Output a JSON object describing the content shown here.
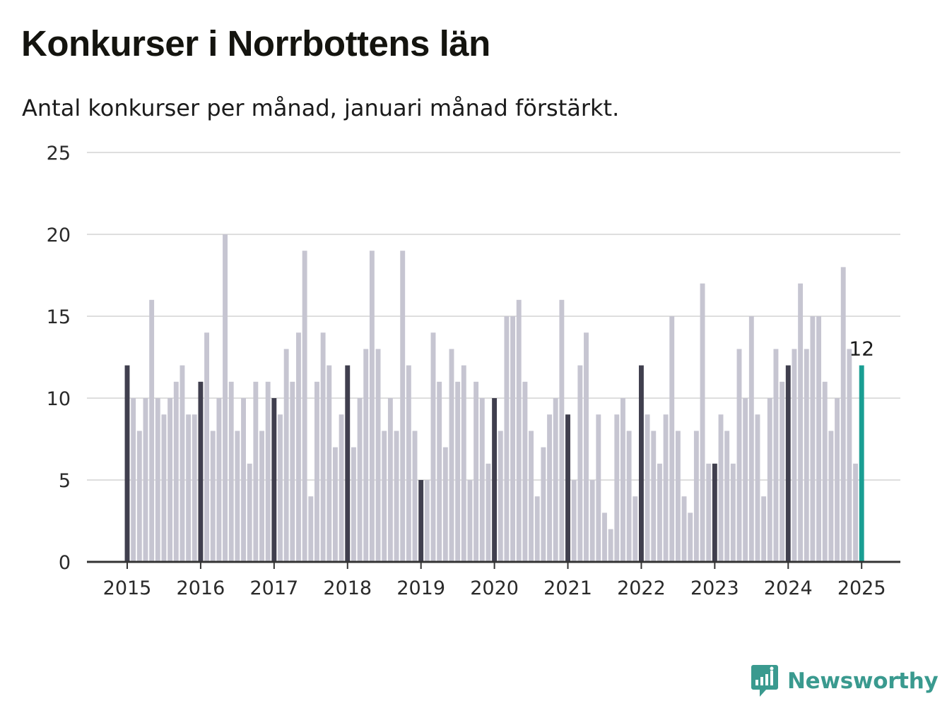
{
  "header": {
    "title": "Konkurser i Norrbottens län",
    "subtitle": "Antal konkurser per månad, januari månad förstärkt."
  },
  "brand": {
    "name": "Newsworthy",
    "icon": "newsworthy-logo-icon",
    "color": "#3a9a8f"
  },
  "colors": {
    "bar": "#c6c5d1",
    "january": "#403f4e",
    "latest": "#1a9e93",
    "grid": "#dedede",
    "axis": "#333333"
  },
  "chart_data": {
    "type": "bar",
    "title": "Konkurser i Norrbottens län",
    "subtitle": "Antal konkurser per månad, januari månad förstärkt.",
    "xlabel": "",
    "ylabel": "",
    "ylim": [
      0,
      25
    ],
    "yticks": [
      0,
      5,
      10,
      15,
      20,
      25
    ],
    "xticks": [
      "2015",
      "2016",
      "2017",
      "2018",
      "2019",
      "2020",
      "2021",
      "2022",
      "2023",
      "2024",
      "2025"
    ],
    "grid": true,
    "highlight": "january",
    "last_value_label": "12",
    "series": [
      {
        "year": "2015",
        "values": [
          12,
          10,
          8,
          10,
          16,
          10,
          9,
          10,
          11,
          12,
          9,
          9
        ]
      },
      {
        "year": "2016",
        "values": [
          11,
          14,
          8,
          10,
          20,
          11,
          8,
          10,
          6,
          11,
          8,
          11
        ]
      },
      {
        "year": "2017",
        "values": [
          10,
          9,
          13,
          11,
          14,
          19,
          4,
          11,
          14,
          12,
          7,
          9
        ]
      },
      {
        "year": "2018",
        "values": [
          12,
          7,
          10,
          13,
          19,
          13,
          8,
          10,
          8,
          19,
          12,
          8
        ]
      },
      {
        "year": "2019",
        "values": [
          5,
          5,
          14,
          11,
          7,
          13,
          11,
          12,
          5,
          11,
          10,
          6
        ]
      },
      {
        "year": "2020",
        "values": [
          10,
          8,
          15,
          15,
          16,
          11,
          8,
          4,
          7,
          9,
          10,
          16
        ]
      },
      {
        "year": "2021",
        "values": [
          9,
          5,
          12,
          14,
          5,
          9,
          3,
          2,
          9,
          10,
          8,
          4
        ]
      },
      {
        "year": "2022",
        "values": [
          12,
          9,
          8,
          6,
          9,
          15,
          8,
          4,
          3,
          8,
          17,
          6
        ]
      },
      {
        "year": "2023",
        "values": [
          6,
          9,
          8,
          6,
          13,
          10,
          15,
          9,
          4,
          10,
          13,
          11
        ]
      },
      {
        "year": "2024",
        "values": [
          12,
          13,
          17,
          13,
          15,
          15,
          11,
          8,
          10,
          18,
          13,
          6
        ]
      },
      {
        "year": "2025",
        "values": [
          12
        ]
      }
    ]
  }
}
